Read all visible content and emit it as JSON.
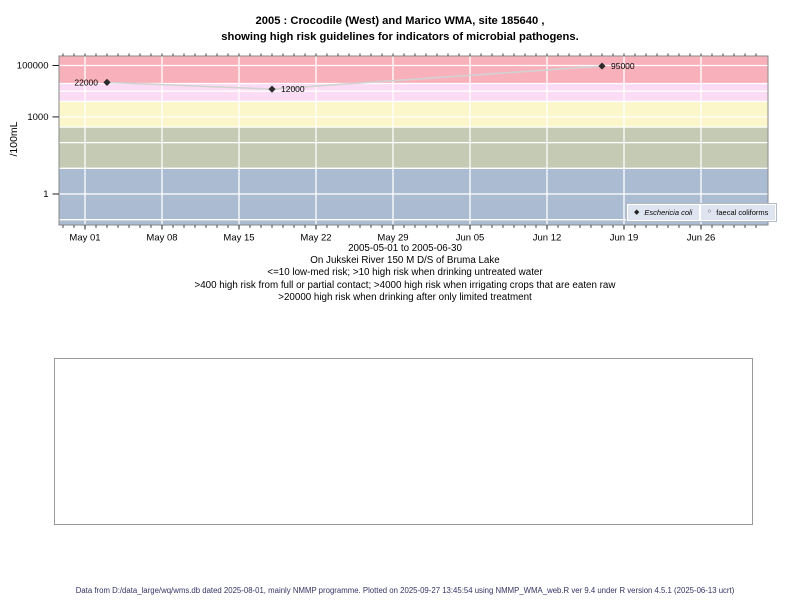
{
  "title": {
    "line1": "2005 : Crocodile (West) and Marico WMA, site 185640 ,",
    "line2": "showing high risk guidelines for indicators of microbial pathogens."
  },
  "chart_data": {
    "type": "scatter",
    "title": "2005 : Crocodile (West) and Marico WMA, site 185640 , showing high risk guidelines for indicators of microbial pathogens.",
    "ylabel": "/100mL",
    "y_scale": "log",
    "ylim": [
      0.06,
      230000
    ],
    "y_ticks": [
      {
        "value": 1,
        "label": "1"
      },
      {
        "value": 1000,
        "label": "1000"
      },
      {
        "value": 100000,
        "label": "100000"
      }
    ],
    "gridline_values": [
      0.1,
      1,
      10,
      100,
      1000,
      10000,
      100000
    ],
    "x_range": [
      "2005-05-01",
      "2005-06-30"
    ],
    "x_ticks": [
      {
        "date": "2005-05-01",
        "label": "May 01"
      },
      {
        "date": "2005-05-08",
        "label": "May 08"
      },
      {
        "date": "2005-05-15",
        "label": "May 15"
      },
      {
        "date": "2005-05-22",
        "label": "May 22"
      },
      {
        "date": "2005-05-29",
        "label": "May 29"
      },
      {
        "date": "2005-06-05",
        "label": "Jun 05"
      },
      {
        "date": "2005-06-12",
        "label": "Jun 12"
      },
      {
        "date": "2005-06-19",
        "label": "Jun 19"
      },
      {
        "date": "2005-06-26",
        "label": "Jun 26"
      }
    ],
    "bands": [
      {
        "min": 0.06,
        "max": 10,
        "color": "#aabbd2"
      },
      {
        "min": 10,
        "max": 400,
        "color": "#c4cab4"
      },
      {
        "min": 400,
        "max": 4000,
        "color": "#fbf7ca"
      },
      {
        "min": 4000,
        "max": 20000,
        "color": "#fbdcf4"
      },
      {
        "min": 20000,
        "max": 230000,
        "color": "#f8b1bb"
      }
    ],
    "series": [
      {
        "name": "Eschericia coli",
        "marker": "filled-diamond",
        "line_color": "#d2d2d2",
        "point_color": "#2b2b2b",
        "points": [
          {
            "date": "2005-05-03",
            "value": 22000,
            "label": "22000",
            "label_side": "left"
          },
          {
            "date": "2005-05-18",
            "value": 12000,
            "label": "12000",
            "label_side": "right"
          },
          {
            "date": "2005-06-17",
            "value": 95000,
            "label": "95000",
            "label_side": "right"
          }
        ]
      },
      {
        "name": "faecal coliforms",
        "marker": "open-circle",
        "points": []
      }
    ],
    "legend_position": "bottom-right",
    "grid_color": "#ffffff"
  },
  "legend": {
    "entries": [
      {
        "label": "Eschericia coli",
        "marker": "filled-diamond",
        "italic": true
      },
      {
        "label": "faecal coliforms",
        "marker": "open-circle",
        "italic": false
      }
    ]
  },
  "captions": {
    "lines": [
      "2005-05-01 to 2005-06-30",
      "On Jukskei River 150 M D/S of Bruma Lake",
      "<=10 low-med risk; >10 high risk when drinking untreated water",
      ">400 high risk from full or partial contact; >4000 high risk when irrigating crops that are eaten raw",
      ">20000 high risk when drinking after only limited treatment"
    ]
  },
  "footer": {
    "text": "Data from D:/data_large/wq/wms.db dated 2025-08-01, mainly NMMP programme. Plotted on 2025-09-27 13:45:54 using NMMP_WMA_web.R ver 9.4 under R version 4.5.1 (2025-06-13 ucrt)"
  },
  "colors": {
    "band_low": "#aabbd2",
    "band_untreated": "#c4cab4",
    "band_contact": "#fbf7ca",
    "band_irrigation": "#fbdcf4",
    "band_limited_treatment": "#f8b1bb",
    "series_line": "#d2d2d2",
    "marker": "#2b2b2b",
    "legend_bg": "#dfe5f0",
    "footer_text": "#333366",
    "plot_border": "#8a8a8a"
  }
}
